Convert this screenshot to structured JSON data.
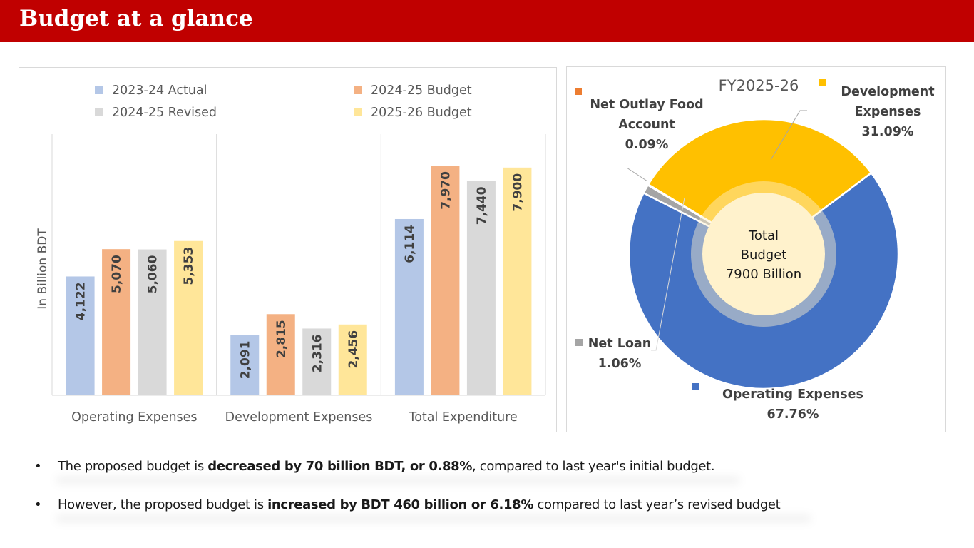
{
  "header": {
    "title": "Budget at a glance",
    "background": "#c00000"
  },
  "chart_data": [
    {
      "type": "bar",
      "title": "",
      "xlabel": "",
      "ylabel": "In Billion BDT",
      "ylim": [
        0,
        9000
      ],
      "grid": false,
      "legend_position": "top",
      "categories": [
        "Operating Expenses",
        "Development Expenses",
        "Total Expenditure"
      ],
      "series": [
        {
          "name": "2023-24   Actual",
          "color": "#b4c7e7",
          "values": [
            4122,
            2091,
            6114
          ],
          "labels": [
            "4,122",
            "2,091",
            "6,114"
          ]
        },
        {
          "name": "2024-25   Budget",
          "color": "#f4b183",
          "values": [
            5070,
            2815,
            7970
          ],
          "labels": [
            "5,070",
            "2,815",
            "7,970"
          ]
        },
        {
          "name": "2024-25   Revised",
          "color": "#d9d9d9",
          "values": [
            5060,
            2316,
            7440
          ],
          "labels": [
            "5,060",
            "2,316",
            "7,440"
          ]
        },
        {
          "name": "2025-26   Budget",
          "color": "#ffe699",
          "values": [
            5353,
            2456,
            7900
          ],
          "labels": [
            "5,353",
            "2,456",
            "7,900"
          ]
        }
      ]
    },
    {
      "type": "pie",
      "title": "FY2025-26",
      "center_label": [
        "Total",
        "Budget",
        "7900 Billion"
      ],
      "slices": [
        {
          "name": "Operating Expenses",
          "label_lines": [
            "Operating Expenses"
          ],
          "percent": 67.76,
          "percent_label": "67.76%",
          "color": "#4472c4"
        },
        {
          "name": "Net Loan",
          "label_lines": [
            "Net Loan"
          ],
          "percent": 1.06,
          "percent_label": "1.06%",
          "color": "#a5a5a5"
        },
        {
          "name": "Net Outlay Food Account",
          "label_lines": [
            "Net Outlay Food",
            "Account"
          ],
          "percent": 0.09,
          "percent_label": "0.09%",
          "color": "#ed7d31"
        },
        {
          "name": "Development Expenses",
          "label_lines": [
            "Development",
            "Expenses"
          ],
          "percent": 31.09,
          "percent_label": "31.09%",
          "color": "#ffc000"
        }
      ]
    }
  ],
  "bullets": [
    {
      "pre": "The proposed budget is ",
      "bold": "decreased by 70 billion BDT, or 0.88%",
      "post": ", compared to last year's initial budget."
    },
    {
      "pre": "However, the proposed budget is ",
      "bold": "increased by BDT 460 billion or 6.18%",
      "post": " compared to last year’s revised budget"
    }
  ],
  "bullet_glyph": "•"
}
